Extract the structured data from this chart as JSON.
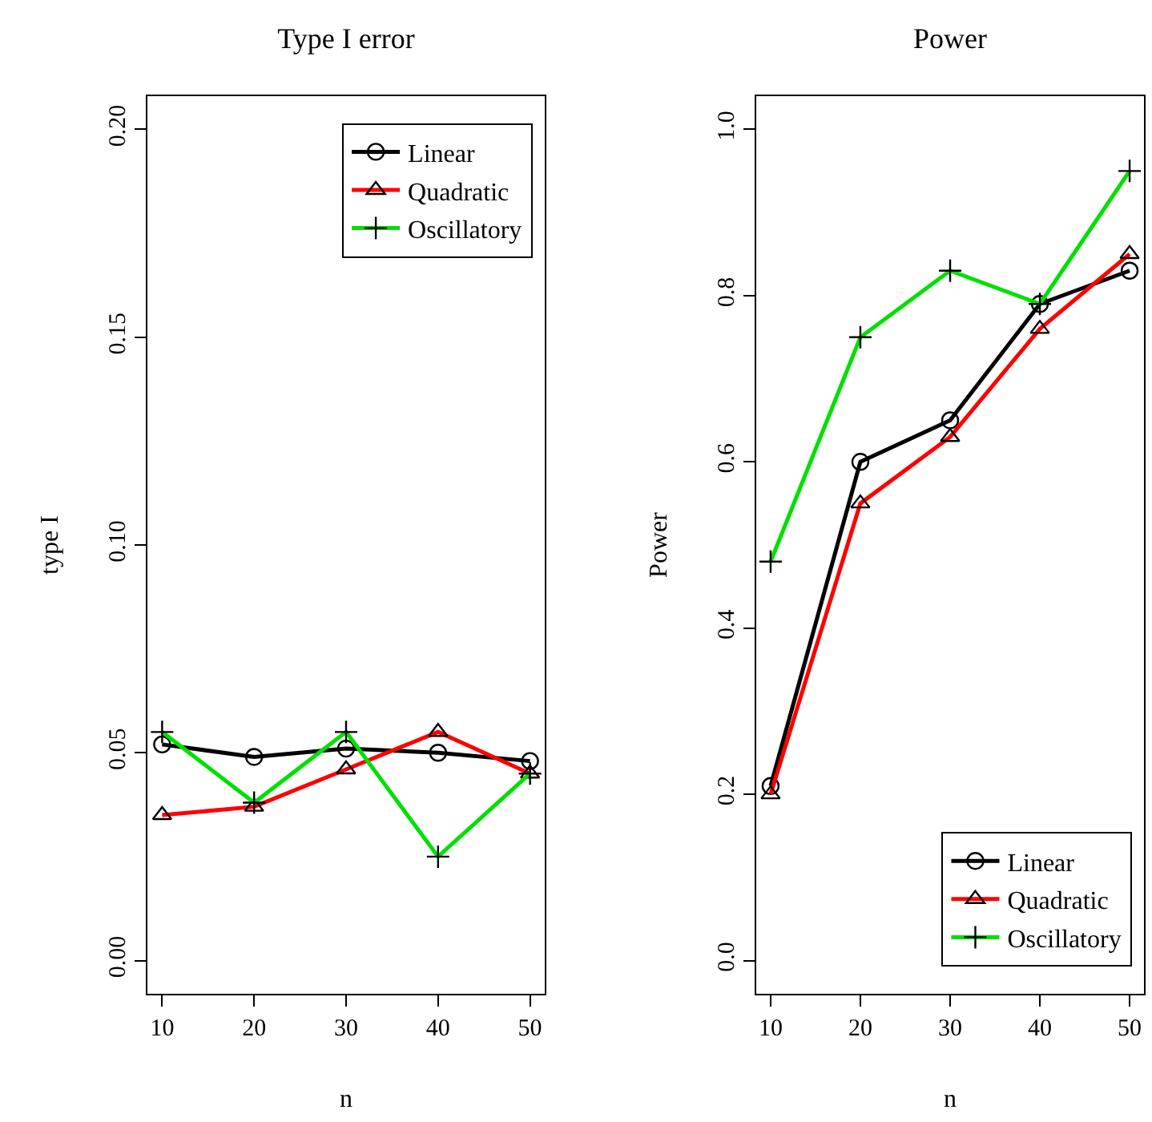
{
  "chart_data": [
    {
      "type": "line",
      "title": "Type I error",
      "xlabel": "n",
      "ylabel": "type I",
      "x": [
        10,
        20,
        30,
        40,
        50
      ],
      "xlim": [
        8.4,
        51.6
      ],
      "xticks": [
        10,
        20,
        30,
        40,
        50
      ],
      "ylim": [
        -0.008,
        0.208
      ],
      "yticks": [
        {
          "value": 0,
          "label": "0.00"
        },
        {
          "value": 0.05,
          "label": "0.05"
        },
        {
          "value": 0.1,
          "label": "0.10"
        },
        0.15,
        {
          "value": 0.2,
          "label": "0.20"
        }
      ],
      "grid": false,
      "legend": "top right",
      "series": [
        {
          "name": "Linear",
          "color": "#000000",
          "marker": "circle",
          "values": [
            0.052,
            0.049,
            0.051,
            0.05,
            0.048
          ]
        },
        {
          "name": "Quadratic",
          "color": "#ff0000",
          "marker": "triangle",
          "values": [
            0.035,
            0.037,
            0.046,
            0.055,
            0.045
          ]
        },
        {
          "name": "Oscillatory",
          "color": "#00e000",
          "marker": "cross",
          "values": [
            0.055,
            0.038,
            0.055,
            0.025,
            0.045
          ]
        }
      ]
    },
    {
      "type": "line",
      "title": "Power",
      "xlabel": "n",
      "ylabel": "Power",
      "x": [
        10,
        20,
        30,
        40,
        50
      ],
      "xlim": [
        8.4,
        51.6
      ],
      "xticks": [
        10,
        20,
        30,
        40,
        50
      ],
      "ylim": [
        -0.04,
        1.04
      ],
      "yticks": [
        {
          "value": 0,
          "label": "0.0"
        },
        0.2,
        0.4,
        0.6,
        0.8,
        {
          "value": 1,
          "label": "1.0"
        }
      ],
      "grid": false,
      "legend": "bottom right",
      "series": [
        {
          "name": "Linear",
          "color": "#000000",
          "marker": "circle",
          "values": [
            0.21,
            0.6,
            0.65,
            0.79,
            0.83
          ]
        },
        {
          "name": "Quadratic",
          "color": "#ff0000",
          "marker": "triangle",
          "values": [
            0.2,
            0.55,
            0.63,
            0.76,
            0.85
          ]
        },
        {
          "name": "Oscillatory",
          "color": "#00e000",
          "marker": "cross",
          "values": [
            0.48,
            0.75,
            0.83,
            0.79,
            0.95
          ]
        }
      ]
    }
  ]
}
